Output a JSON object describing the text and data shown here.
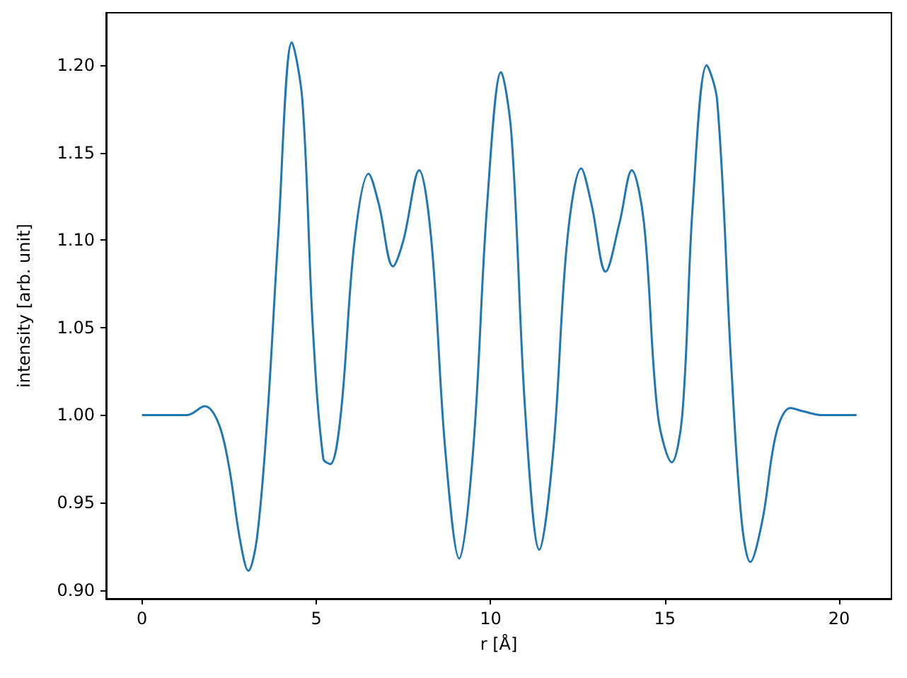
{
  "chart_data": {
    "type": "line",
    "xlabel": "r [Å]",
    "ylabel": "intensity [arb. unit]",
    "xlim": [
      -1.03,
      21.5
    ],
    "xticks": [
      0,
      5,
      10,
      15,
      20
    ],
    "ylim": [
      0.895,
      1.23
    ],
    "yticks": [
      {
        "value": 0.9,
        "label": "0.90"
      },
      {
        "value": 0.95,
        "label": "0.95"
      },
      {
        "value": 1.0,
        "label": "1.00"
      },
      {
        "value": 1.05,
        "label": "1.05"
      },
      {
        "value": 1.1,
        "label": "1.10"
      },
      {
        "value": 1.15,
        "label": "1.15"
      },
      {
        "value": 1.2,
        "label": "1.20"
      }
    ],
    "grid": false,
    "marker": "none",
    "line_style": "solid",
    "series": [
      {
        "color": "#1f77b4",
        "x": [
          0,
          1,
          1.3,
          1.8,
          2.2,
          2.5,
          2.8,
          3.05,
          3.3,
          3.6,
          3.9,
          4.3,
          4.6,
          4.9,
          5.2,
          5.4,
          5.7,
          6.1,
          6.5,
          6.8,
          7.2,
          7.5,
          7.95,
          8.3,
          8.7,
          9.1,
          9.5,
          9.9,
          10.3,
          10.6,
          11.0,
          11.4,
          11.8,
          12.2,
          12.6,
          12.9,
          13.3,
          13.7,
          14.05,
          14.4,
          14.8,
          15.2,
          15.5,
          15.8,
          16.2,
          16.5,
          16.9,
          17.2,
          17.45,
          17.8,
          18.2,
          18.6,
          19.0,
          19.5,
          20.5
        ],
        "values": [
          1.0,
          1.0,
          1.0,
          1.005,
          0.995,
          0.97,
          0.93,
          0.911,
          0.93,
          1.0,
          1.1,
          1.213,
          1.18,
          1.05,
          0.975,
          0.972,
          1.0,
          1.1,
          1.138,
          1.12,
          1.085,
          1.1,
          1.14,
          1.1,
          0.98,
          0.918,
          0.98,
          1.12,
          1.196,
          1.16,
          1.0,
          0.923,
          0.98,
          1.1,
          1.141,
          1.12,
          1.082,
          1.11,
          1.14,
          1.11,
          1.0,
          0.973,
          1.0,
          1.12,
          1.2,
          1.18,
          1.03,
          0.94,
          0.916,
          0.94,
          0.99,
          1.004,
          1.002,
          1.0,
          1.0
        ]
      }
    ]
  }
}
